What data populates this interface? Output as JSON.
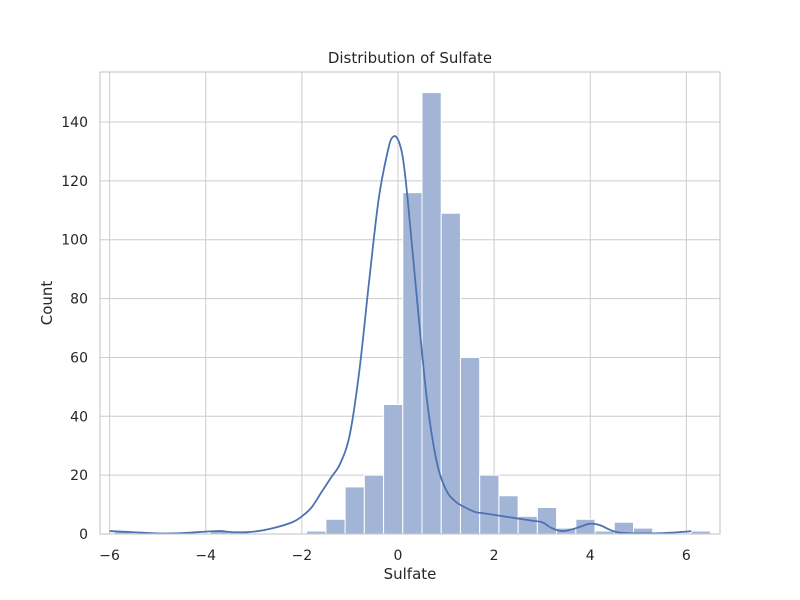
{
  "chart_data": {
    "type": "bar",
    "title": "Distribution of Sulfate",
    "xlabel": "Sulfate",
    "ylabel": "Count",
    "xlim": [
      -6.2,
      6.7
    ],
    "ylim": [
      0,
      157
    ],
    "grid": true,
    "xticks": [
      -6,
      -4,
      -2,
      0,
      2,
      4,
      6
    ],
    "xtick_labels": [
      "−6",
      "−4",
      "−2",
      "0",
      "2",
      "4",
      "6"
    ],
    "yticks": [
      0,
      20,
      40,
      60,
      80,
      100,
      120,
      140
    ],
    "ytick_labels": [
      "0",
      "20",
      "40",
      "60",
      "80",
      "100",
      "120",
      "140"
    ],
    "bin_start": -5.9,
    "bin_width": 0.4,
    "counts": [
      1,
      0,
      0,
      0,
      0,
      1,
      1,
      0,
      0,
      0,
      1,
      5,
      16,
      20,
      44,
      116,
      150,
      109,
      60,
      20,
      13,
      6,
      9,
      2,
      5,
      1,
      4,
      2,
      0,
      0,
      1
    ],
    "kde": {
      "x": [
        -6.0,
        -5.5,
        -5.0,
        -4.5,
        -4.0,
        -3.7,
        -3.4,
        -3.0,
        -2.6,
        -2.2,
        -2.0,
        -1.8,
        -1.6,
        -1.4,
        -1.2,
        -1.0,
        -0.8,
        -0.6,
        -0.4,
        -0.2,
        -0.1,
        0.0,
        0.1,
        0.2,
        0.4,
        0.6,
        0.8,
        1.0,
        1.2,
        1.4,
        1.6,
        1.8,
        2.0,
        2.2,
        2.4,
        2.6,
        2.8,
        3.0,
        3.2,
        3.4,
        3.6,
        3.8,
        4.0,
        4.2,
        4.4,
        4.6,
        5.0,
        5.5,
        6.0,
        6.1
      ],
      "y": [
        1,
        0.6,
        0.2,
        0.3,
        0.8,
        1,
        0.6,
        0.8,
        2,
        4,
        6,
        9,
        14,
        19,
        24,
        34,
        56,
        86,
        114,
        131,
        135,
        134,
        128,
        114,
        79,
        46,
        25,
        15,
        11,
        9,
        7.5,
        7,
        6.5,
        6,
        5.5,
        5,
        4.5,
        4,
        2,
        1,
        1.5,
        2.5,
        3.5,
        3,
        1.5,
        0.5,
        0.2,
        0.3,
        0.8,
        1
      ]
    },
    "colors": {
      "bar_fill": "#a3b5d6",
      "bar_edge": "#ffffff",
      "line": "#4c72b0",
      "grid": "#cccccc",
      "axes_edge": "#cccccc"
    }
  }
}
